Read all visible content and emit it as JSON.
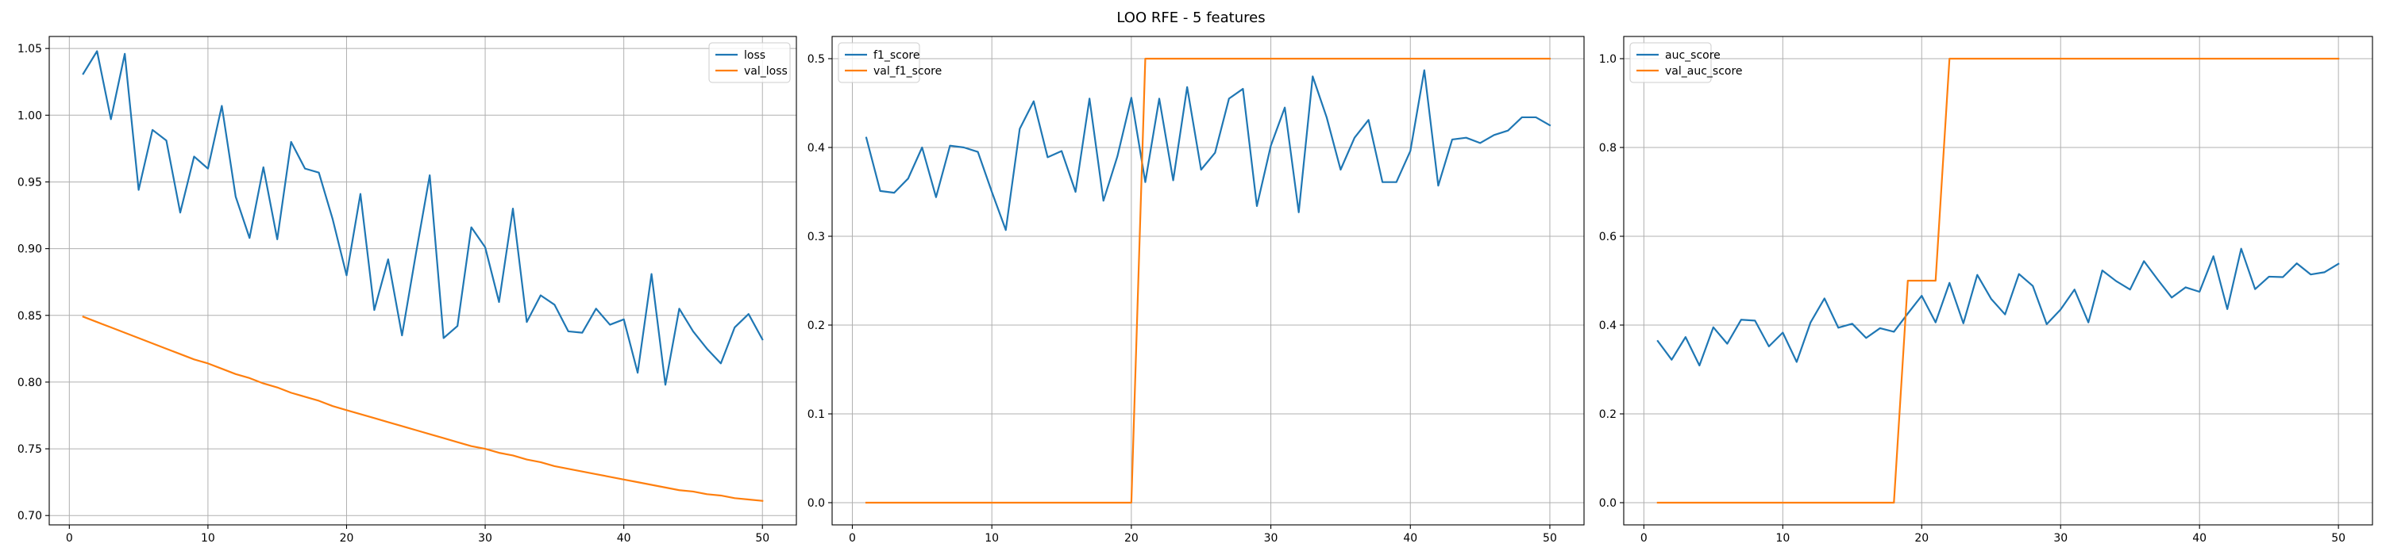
{
  "figure": {
    "title": "LOO RFE - 5 features"
  },
  "colors": {
    "blue": "#1f77b4",
    "orange": "#ff7f0e"
  },
  "chart_data": [
    {
      "type": "line",
      "title": "",
      "xlabel": "",
      "ylabel": "",
      "grid": true,
      "legend_position": "top-right",
      "xlim": [
        -1.45,
        52.45
      ],
      "ylim": [
        0.693,
        1.059
      ],
      "xticks": [
        0,
        10,
        20,
        30,
        40,
        50
      ],
      "xtick_labels": [
        "0",
        "10",
        "20",
        "30",
        "40",
        "50"
      ],
      "yticks": [
        0.7,
        0.75,
        0.8,
        0.85,
        0.9,
        0.95,
        1.0,
        1.05
      ],
      "ytick_labels": [
        "0.70",
        "0.75",
        "0.80",
        "0.85",
        "0.90",
        "0.95",
        "1.00",
        "1.05"
      ],
      "x": [
        1,
        2,
        3,
        4,
        5,
        6,
        7,
        8,
        9,
        10,
        11,
        12,
        13,
        14,
        15,
        16,
        17,
        18,
        19,
        20,
        21,
        22,
        23,
        24,
        25,
        26,
        27,
        28,
        29,
        30,
        31,
        32,
        33,
        34,
        35,
        36,
        37,
        38,
        39,
        40,
        41,
        42,
        43,
        44,
        45,
        46,
        47,
        48,
        49,
        50
      ],
      "series": [
        {
          "name": "loss",
          "color": "#1f77b4",
          "values": [
            1.031,
            1.048,
            0.997,
            1.046,
            0.944,
            0.989,
            0.981,
            0.927,
            0.969,
            0.96,
            1.007,
            0.939,
            0.908,
            0.961,
            0.907,
            0.98,
            0.96,
            0.957,
            0.922,
            0.88,
            0.941,
            0.854,
            0.892,
            0.835,
            0.896,
            0.955,
            0.833,
            0.842,
            0.916,
            0.901,
            0.86,
            0.93,
            0.845,
            0.865,
            0.858,
            0.838,
            0.837,
            0.855,
            0.843,
            0.847,
            0.807,
            0.881,
            0.798,
            0.855,
            0.838,
            0.825,
            0.814,
            0.841,
            0.851,
            0.832
          ]
        },
        {
          "name": "val_loss",
          "color": "#ff7f0e",
          "values": [
            0.849,
            0.845,
            0.841,
            0.837,
            0.833,
            0.829,
            0.825,
            0.821,
            0.817,
            0.814,
            0.81,
            0.806,
            0.803,
            0.799,
            0.796,
            0.792,
            0.789,
            0.786,
            0.782,
            0.779,
            0.776,
            0.773,
            0.77,
            0.767,
            0.764,
            0.761,
            0.758,
            0.755,
            0.752,
            0.75,
            0.747,
            0.745,
            0.742,
            0.74,
            0.737,
            0.735,
            0.733,
            0.731,
            0.729,
            0.727,
            0.725,
            0.723,
            0.721,
            0.719,
            0.718,
            0.716,
            0.715,
            0.713,
            0.712,
            0.711
          ]
        }
      ]
    },
    {
      "type": "line",
      "title": "",
      "xlabel": "",
      "ylabel": "",
      "grid": true,
      "legend_position": "top-left",
      "xlim": [
        -1.45,
        52.45
      ],
      "ylim": [
        -0.025,
        0.525
      ],
      "xticks": [
        0,
        10,
        20,
        30,
        40,
        50
      ],
      "xtick_labels": [
        "0",
        "10",
        "20",
        "30",
        "40",
        "50"
      ],
      "yticks": [
        0.0,
        0.1,
        0.2,
        0.3,
        0.4,
        0.5
      ],
      "ytick_labels": [
        "0.0",
        "0.1",
        "0.2",
        "0.3",
        "0.4",
        "0.5"
      ],
      "x": [
        1,
        2,
        3,
        4,
        5,
        6,
        7,
        8,
        9,
        10,
        11,
        12,
        13,
        14,
        15,
        16,
        17,
        18,
        19,
        20,
        21,
        22,
        23,
        24,
        25,
        26,
        27,
        28,
        29,
        30,
        31,
        32,
        33,
        34,
        35,
        36,
        37,
        38,
        39,
        40,
        41,
        42,
        43,
        44,
        45,
        46,
        47,
        48,
        49,
        50
      ],
      "series": [
        {
          "name": "f1_score",
          "color": "#1f77b4",
          "values": [
            0.411,
            0.351,
            0.349,
            0.365,
            0.4,
            0.344,
            0.402,
            0.4,
            0.395,
            0.35,
            0.307,
            0.421,
            0.452,
            0.389,
            0.396,
            0.35,
            0.455,
            0.34,
            0.39,
            0.456,
            0.361,
            0.455,
            0.363,
            0.468,
            0.375,
            0.394,
            0.455,
            0.466,
            0.334,
            0.402,
            0.445,
            0.327,
            0.48,
            0.434,
            0.375,
            0.411,
            0.431,
            0.361,
            0.361,
            0.396,
            0.487,
            0.357,
            0.409,
            0.411,
            0.405,
            0.414,
            0.419,
            0.434,
            0.434,
            0.425
          ]
        },
        {
          "name": "val_f1_score",
          "color": "#ff7f0e",
          "values": [
            0,
            0,
            0,
            0,
            0,
            0,
            0,
            0,
            0,
            0,
            0,
            0,
            0,
            0,
            0,
            0,
            0,
            0,
            0,
            0,
            0.5,
            0.5,
            0.5,
            0.5,
            0.5,
            0.5,
            0.5,
            0.5,
            0.5,
            0.5,
            0.5,
            0.5,
            0.5,
            0.5,
            0.5,
            0.5,
            0.5,
            0.5,
            0.5,
            0.5,
            0.5,
            0.5,
            0.5,
            0.5,
            0.5,
            0.5,
            0.5,
            0.5,
            0.5,
            0.5
          ]
        }
      ]
    },
    {
      "type": "line",
      "title": "",
      "xlabel": "",
      "ylabel": "",
      "grid": true,
      "legend_position": "top-left",
      "xlim": [
        -1.45,
        52.45
      ],
      "ylim": [
        -0.05,
        1.05
      ],
      "xticks": [
        0,
        10,
        20,
        30,
        40,
        50
      ],
      "xtick_labels": [
        "0",
        "10",
        "20",
        "30",
        "40",
        "50"
      ],
      "yticks": [
        0.0,
        0.2,
        0.4,
        0.6,
        0.8,
        1.0
      ],
      "ytick_labels": [
        "0.0",
        "0.2",
        "0.4",
        "0.6",
        "0.8",
        "1.0"
      ],
      "x": [
        1,
        2,
        3,
        4,
        5,
        6,
        7,
        8,
        9,
        10,
        11,
        12,
        13,
        14,
        15,
        16,
        17,
        18,
        19,
        20,
        21,
        22,
        23,
        24,
        25,
        26,
        27,
        28,
        29,
        30,
        31,
        32,
        33,
        34,
        35,
        36,
        37,
        38,
        39,
        40,
        41,
        42,
        43,
        44,
        45,
        46,
        47,
        48,
        49,
        50
      ],
      "series": [
        {
          "name": "auc_score",
          "color": "#1f77b4",
          "values": [
            0.364,
            0.322,
            0.373,
            0.309,
            0.395,
            0.358,
            0.412,
            0.41,
            0.352,
            0.383,
            0.317,
            0.406,
            0.46,
            0.394,
            0.403,
            0.371,
            0.393,
            0.385,
            0.426,
            0.466,
            0.406,
            0.495,
            0.404,
            0.513,
            0.459,
            0.424,
            0.515,
            0.488,
            0.402,
            0.435,
            0.48,
            0.406,
            0.523,
            0.499,
            0.48,
            0.544,
            0.502,
            0.462,
            0.485,
            0.475,
            0.555,
            0.436,
            0.572,
            0.481,
            0.509,
            0.508,
            0.539,
            0.514,
            0.519,
            0.538
          ]
        },
        {
          "name": "val_auc_score",
          "color": "#ff7f0e",
          "values": [
            0,
            0,
            0,
            0,
            0,
            0,
            0,
            0,
            0,
            0,
            0,
            0,
            0,
            0,
            0,
            0,
            0,
            0,
            0.5,
            0.5,
            0.5,
            1,
            1,
            1,
            1,
            1,
            1,
            1,
            1,
            1,
            1,
            1,
            1,
            1,
            1,
            1,
            1,
            1,
            1,
            1,
            1,
            1,
            1,
            1,
            1,
            1,
            1,
            1,
            1,
            1
          ]
        }
      ]
    }
  ]
}
